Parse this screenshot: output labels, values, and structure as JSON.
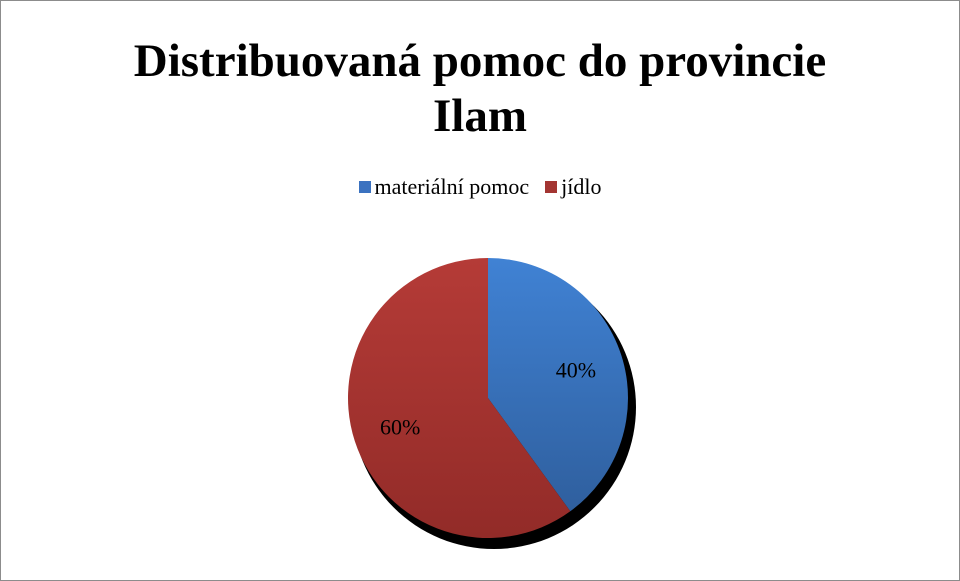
{
  "chart_data": {
    "type": "pie",
    "title": "Distribuovaná pomoc do provincie Ilam",
    "title_lines": [
      "Distribuovaná pomoc do provincie",
      "Ilam"
    ],
    "categories": [
      "materiální pomoc",
      "jídlo"
    ],
    "values": [
      40,
      60
    ],
    "data_labels": [
      "40%",
      "60%"
    ],
    "colors": [
      "#3b72c0",
      "#a33532"
    ],
    "legend_position": "top"
  }
}
